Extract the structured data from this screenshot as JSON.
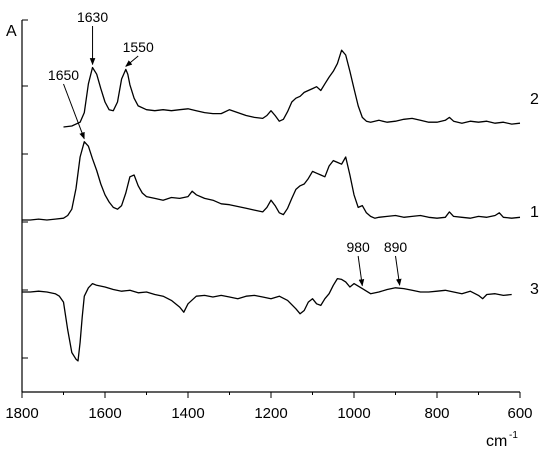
{
  "chart_data": {
    "type": "line",
    "title": "",
    "xlabel": "cm",
    "xlabel_sup": "-1",
    "ylabel": "A",
    "xlim": [
      1800,
      600
    ],
    "x_ticks": [
      1800,
      1600,
      1400,
      1200,
      1000,
      800,
      600
    ],
    "x_tick_labels": [
      "1800",
      "1600",
      "1400",
      "1200",
      "1000",
      "800",
      "600"
    ],
    "y_ticks_note": "unlabeled minor ticks on absorbance axis",
    "grid": false,
    "series": [
      {
        "name": "2",
        "x": [
          1700,
          1680,
          1660,
          1650,
          1640,
          1630,
          1620,
          1610,
          1600,
          1590,
          1580,
          1570,
          1560,
          1550,
          1545,
          1540,
          1530,
          1520,
          1500,
          1480,
          1460,
          1440,
          1420,
          1400,
          1380,
          1360,
          1340,
          1320,
          1300,
          1280,
          1260,
          1240,
          1220,
          1210,
          1200,
          1190,
          1180,
          1170,
          1160,
          1150,
          1140,
          1130,
          1120,
          1110,
          1100,
          1090,
          1080,
          1070,
          1060,
          1050,
          1040,
          1030,
          1020,
          1010,
          1000,
          990,
          980,
          970,
          960,
          950,
          940,
          920,
          900,
          880,
          860,
          840,
          820,
          800,
          780,
          770,
          760,
          740,
          720,
          700,
          680,
          660,
          640,
          620,
          600
        ],
        "values": [
          0.0,
          0.01,
          0.05,
          0.15,
          0.45,
          0.62,
          0.55,
          0.4,
          0.26,
          0.18,
          0.17,
          0.26,
          0.5,
          0.6,
          0.55,
          0.44,
          0.3,
          0.22,
          0.18,
          0.17,
          0.18,
          0.17,
          0.18,
          0.19,
          0.17,
          0.15,
          0.14,
          0.14,
          0.18,
          0.15,
          0.12,
          0.1,
          0.09,
          0.12,
          0.17,
          0.12,
          0.06,
          0.08,
          0.16,
          0.26,
          0.3,
          0.32,
          0.36,
          0.38,
          0.4,
          0.42,
          0.38,
          0.45,
          0.52,
          0.58,
          0.66,
          0.8,
          0.75,
          0.58,
          0.4,
          0.22,
          0.1,
          0.06,
          0.05,
          0.06,
          0.07,
          0.05,
          0.06,
          0.08,
          0.09,
          0.07,
          0.05,
          0.05,
          0.07,
          0.1,
          0.06,
          0.04,
          0.06,
          0.05,
          0.06,
          0.04,
          0.05,
          0.03,
          0.04
        ]
      },
      {
        "name": "1",
        "x": [
          1800,
          1780,
          1760,
          1740,
          1720,
          1700,
          1690,
          1680,
          1670,
          1660,
          1650,
          1640,
          1630,
          1620,
          1610,
          1600,
          1590,
          1580,
          1570,
          1560,
          1550,
          1540,
          1530,
          1520,
          1510,
          1500,
          1480,
          1460,
          1440,
          1420,
          1400,
          1390,
          1380,
          1360,
          1340,
          1320,
          1300,
          1280,
          1260,
          1240,
          1220,
          1210,
          1200,
          1190,
          1180,
          1170,
          1160,
          1150,
          1140,
          1130,
          1120,
          1110,
          1100,
          1090,
          1080,
          1070,
          1060,
          1050,
          1040,
          1030,
          1020,
          1010,
          1000,
          990,
          980,
          970,
          960,
          950,
          940,
          920,
          900,
          880,
          860,
          840,
          820,
          800,
          780,
          770,
          760,
          740,
          720,
          700,
          680,
          660,
          650,
          640,
          620,
          600
        ],
        "values": [
          0.0,
          0.0,
          0.01,
          0.0,
          0.01,
          0.02,
          0.05,
          0.12,
          0.35,
          0.7,
          0.87,
          0.82,
          0.68,
          0.55,
          0.4,
          0.28,
          0.2,
          0.14,
          0.12,
          0.16,
          0.3,
          0.48,
          0.5,
          0.38,
          0.3,
          0.26,
          0.24,
          0.22,
          0.25,
          0.24,
          0.26,
          0.32,
          0.28,
          0.24,
          0.22,
          0.18,
          0.17,
          0.15,
          0.13,
          0.11,
          0.09,
          0.14,
          0.22,
          0.16,
          0.08,
          0.06,
          0.13,
          0.24,
          0.34,
          0.38,
          0.4,
          0.46,
          0.54,
          0.52,
          0.5,
          0.48,
          0.6,
          0.66,
          0.64,
          0.62,
          0.7,
          0.5,
          0.28,
          0.14,
          0.16,
          0.08,
          0.04,
          0.02,
          0.03,
          0.04,
          0.05,
          0.03,
          0.04,
          0.05,
          0.03,
          0.02,
          0.03,
          0.09,
          0.04,
          0.03,
          0.02,
          0.04,
          0.03,
          0.05,
          0.08,
          0.03,
          0.02,
          0.03
        ]
      },
      {
        "name": "3",
        "x": [
          1800,
          1780,
          1760,
          1740,
          1720,
          1710,
          1700,
          1690,
          1680,
          1670,
          1665,
          1660,
          1655,
          1650,
          1640,
          1630,
          1620,
          1600,
          1580,
          1560,
          1540,
          1520,
          1500,
          1480,
          1460,
          1440,
          1420,
          1410,
          1400,
          1380,
          1360,
          1340,
          1320,
          1300,
          1280,
          1260,
          1240,
          1220,
          1200,
          1180,
          1160,
          1140,
          1130,
          1120,
          1110,
          1100,
          1090,
          1080,
          1070,
          1060,
          1050,
          1040,
          1030,
          1020,
          1010,
          1000,
          980,
          960,
          940,
          920,
          900,
          880,
          860,
          840,
          820,
          800,
          780,
          760,
          740,
          720,
          700,
          690,
          680,
          660,
          640,
          620
        ],
        "values": [
          0.0,
          0.0,
          0.01,
          0.0,
          -0.02,
          -0.05,
          -0.12,
          -0.45,
          -0.72,
          -0.8,
          -0.82,
          -0.6,
          -0.3,
          -0.05,
          0.05,
          0.1,
          0.08,
          0.06,
          0.03,
          0.01,
          0.02,
          -0.01,
          0.0,
          -0.03,
          -0.05,
          -0.1,
          -0.18,
          -0.24,
          -0.14,
          -0.05,
          -0.04,
          -0.06,
          -0.04,
          -0.06,
          -0.08,
          -0.05,
          -0.04,
          -0.06,
          -0.08,
          -0.05,
          -0.1,
          -0.2,
          -0.26,
          -0.22,
          -0.12,
          -0.08,
          -0.14,
          -0.16,
          -0.08,
          -0.02,
          0.08,
          0.16,
          0.15,
          0.12,
          0.06,
          0.1,
          0.04,
          -0.02,
          0.0,
          0.03,
          0.05,
          0.04,
          0.02,
          0.0,
          0.0,
          0.01,
          0.02,
          0.0,
          -0.02,
          0.01,
          -0.04,
          -0.08,
          -0.03,
          -0.02,
          -0.04,
          -0.03
        ]
      }
    ],
    "annotations": [
      {
        "text": "1630",
        "x": 1630,
        "series": "2"
      },
      {
        "text": "1550",
        "x": 1550,
        "series": "2"
      },
      {
        "text": "1650",
        "x": 1650,
        "series": "1"
      },
      {
        "text": "980",
        "x": 980,
        "series": "3"
      },
      {
        "text": "890",
        "x": 890,
        "series": "3"
      }
    ]
  }
}
